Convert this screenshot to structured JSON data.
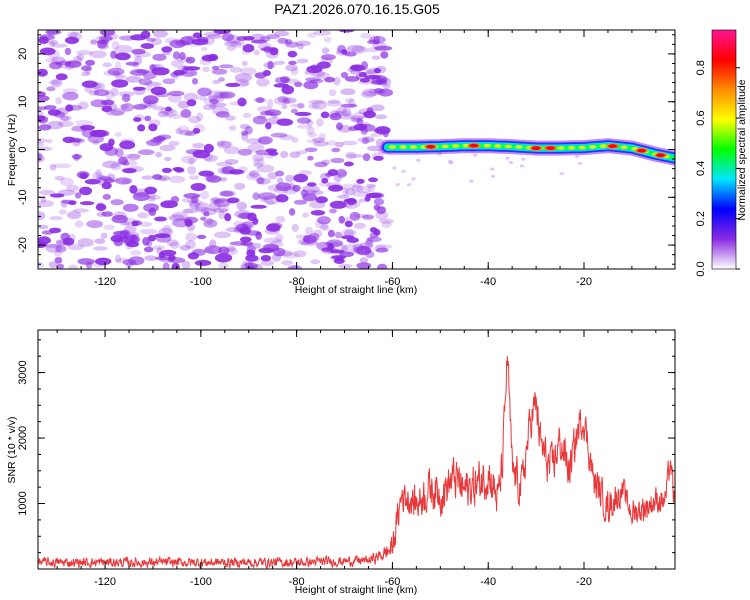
{
  "title": "PAZ1.2026.070.16.15.G05",
  "colors": {
    "snr_line": "#e8383a",
    "noise": "#8a2be2",
    "axis": "#000000"
  },
  "chart_data": [
    {
      "type": "heatmap",
      "name": "spectrogram",
      "xlabel": "Height of straight line (km)",
      "ylabel": "Frequency (Hz)",
      "xlim": [
        -134,
        -1
      ],
      "ylim": [
        -25,
        25
      ],
      "xticks": [
        -120,
        -100,
        -80,
        -60,
        -40,
        -20
      ],
      "yticks": [
        -20,
        -10,
        0,
        10,
        20
      ],
      "noise_region_x": [
        -134,
        -61
      ],
      "signal_ridge": {
        "x": [
          -61,
          -55,
          -50,
          -45,
          -40,
          -35,
          -30,
          -25,
          -20,
          -15,
          -10,
          -5,
          -1
        ],
        "freq": [
          0.5,
          0.5,
          0.6,
          0.8,
          0.8,
          0.6,
          0.3,
          0.3,
          0.4,
          0.8,
          0.3,
          -1.0,
          -1.8
        ],
        "peak_amplitude_at": [
          -52,
          -43,
          -30,
          -27,
          -14,
          -8,
          -4
        ]
      },
      "colorbar": {
        "label": "Normalized spectral amplitude",
        "range": [
          0,
          0.95
        ],
        "ticks": [
          "0.0",
          "0.2",
          "0.4",
          "0.6",
          "0.8"
        ],
        "tick_values": [
          0,
          0.2,
          0.4,
          0.6,
          0.8
        ],
        "colors": [
          "#ffffff",
          "#8a2be2",
          "#0000ff",
          "#00e5ff",
          "#00ff00",
          "#ffff00",
          "#ff8c00",
          "#ff0000",
          "#ff1493"
        ]
      }
    },
    {
      "type": "line",
      "name": "snr",
      "xlabel": "Height of straight line (km)",
      "ylabel": "SNR (10 * v/v)",
      "xlim": [
        -134,
        -1
      ],
      "ylim": [
        0,
        3650
      ],
      "xticks": [
        -120,
        -100,
        -80,
        -60,
        -40,
        -20
      ],
      "yticks": [
        1000,
        2000,
        3000
      ],
      "series": [
        {
          "name": "SNR",
          "x": [
            -134,
            -120,
            -100,
            -80,
            -65,
            -62,
            -60,
            -58,
            -55,
            -52,
            -50,
            -47,
            -45,
            -42,
            -40,
            -38,
            -37,
            -36,
            -35,
            -33,
            -31,
            -30,
            -29,
            -27,
            -25,
            -23,
            -21,
            -20,
            -18,
            -15,
            -12,
            -10,
            -7,
            -5,
            -3,
            -2,
            -1
          ],
          "base": [
            100,
            100,
            100,
            100,
            130,
            220,
            320,
            1150,
            1000,
            1250,
            1150,
            1400,
            1200,
            1300,
            1500,
            1050,
            1600,
            3300,
            1500,
            1250,
            2350,
            2500,
            1900,
            1500,
            1950,
            1500,
            2200,
            2300,
            1350,
            950,
            1200,
            850,
            950,
            1050,
            1050,
            1650,
            900
          ],
          "noise_amp": [
            70,
            70,
            70,
            70,
            70,
            90,
            200,
            250,
            250,
            300,
            300,
            300,
            300,
            300,
            350,
            300,
            300,
            250,
            300,
            300,
            300,
            300,
            300,
            300,
            300,
            300,
            250,
            250,
            250,
            250,
            200,
            200,
            200,
            200,
            200,
            200,
            200
          ]
        }
      ]
    }
  ]
}
